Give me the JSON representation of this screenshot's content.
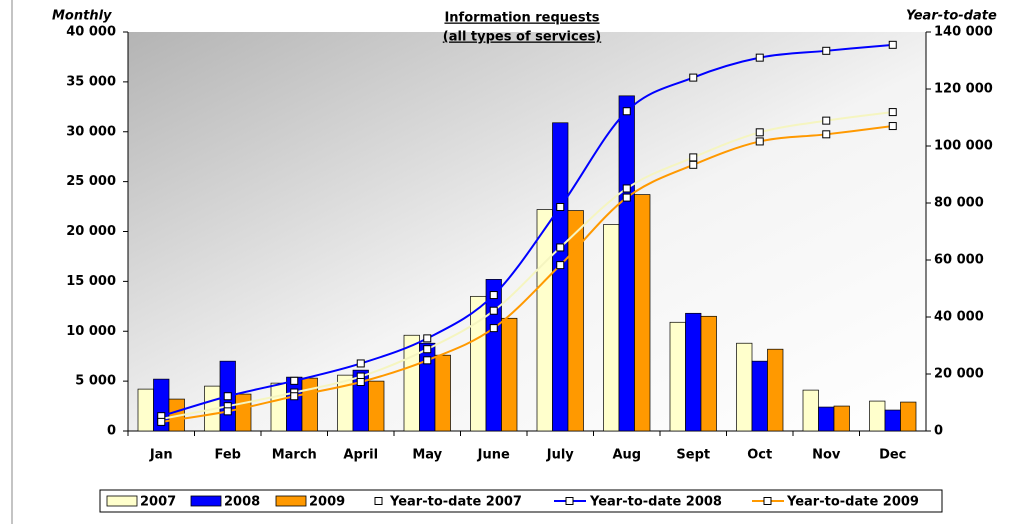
{
  "chart_data": {
    "type": "bar",
    "title": "Information requests",
    "subtitle": "(all types of services)",
    "y_label": "Monthly",
    "y2_label": "Year-to-date",
    "categories": [
      "Jan",
      "Feb",
      "March",
      "April",
      "May",
      "June",
      "July",
      "Aug",
      "Sept",
      "Oct",
      "Nov",
      "Dec"
    ],
    "series": [
      {
        "name": "2007",
        "type": "bar",
        "color": "#ffffcc",
        "values": [
          4200,
          4500,
          4800,
          5600,
          9600,
          13500,
          22200,
          20700,
          10900,
          8800,
          4100,
          3000
        ]
      },
      {
        "name": "2008",
        "type": "bar",
        "color": "#0000ff",
        "values": [
          5200,
          7000,
          5400,
          6100,
          8800,
          15200,
          30900,
          33600,
          11800,
          7000,
          2400,
          2100
        ]
      },
      {
        "name": "2009",
        "type": "bar",
        "color": "#ff9900",
        "values": [
          3200,
          3700,
          5300,
          5000,
          7600,
          11300,
          22100,
          23700,
          11500,
          8200,
          2500,
          2900
        ]
      },
      {
        "name": "Year-to-date 2007",
        "type": "line",
        "axis": "y2",
        "color": "#f5f5c0",
        "values": [
          4200,
          8700,
          13500,
          19100,
          28700,
          42200,
          64400,
          85100,
          96000,
          104800,
          108900,
          111900
        ]
      },
      {
        "name": "Year-to-date 2008",
        "type": "line",
        "axis": "y2",
        "color": "#0000ff",
        "values": [
          5200,
          12200,
          17600,
          23700,
          32500,
          47700,
          78600,
          112200,
          124000,
          131000,
          133400,
          135500
        ]
      },
      {
        "name": "Year-to-date 2009",
        "type": "line",
        "axis": "y2",
        "color": "#ff9900",
        "values": [
          3200,
          6900,
          12200,
          17200,
          24800,
          36100,
          58200,
          81900,
          93400,
          101600,
          104100,
          107000
        ]
      }
    ],
    "ylim": [
      0,
      40000
    ],
    "yticks": [
      0,
      {
        "value": 5000,
        "label": "5 000"
      },
      {
        "value": 10000,
        "label": "10 000"
      },
      {
        "value": 15000,
        "label": "15 000"
      },
      {
        "value": 20000,
        "label": "20 000"
      },
      {
        "value": 25000,
        "label": "25 000"
      },
      {
        "value": 30000,
        "label": "30 000"
      },
      {
        "value": 35000,
        "label": "35 000"
      },
      {
        "value": 40000,
        "label": "40 000"
      }
    ],
    "y2lim": [
      0,
      140000
    ],
    "y2ticks": [
      0,
      {
        "value": 20000,
        "label": "20 000"
      },
      {
        "value": 40000,
        "label": "40 000"
      },
      {
        "value": 60000,
        "label": "60 000"
      },
      {
        "value": 80000,
        "label": "80 000"
      },
      {
        "value": 100000,
        "label": "100 000"
      },
      {
        "value": 120000,
        "label": "120 000"
      },
      {
        "value": 140000,
        "label": "140 000"
      }
    ],
    "legend": "bottom"
  }
}
